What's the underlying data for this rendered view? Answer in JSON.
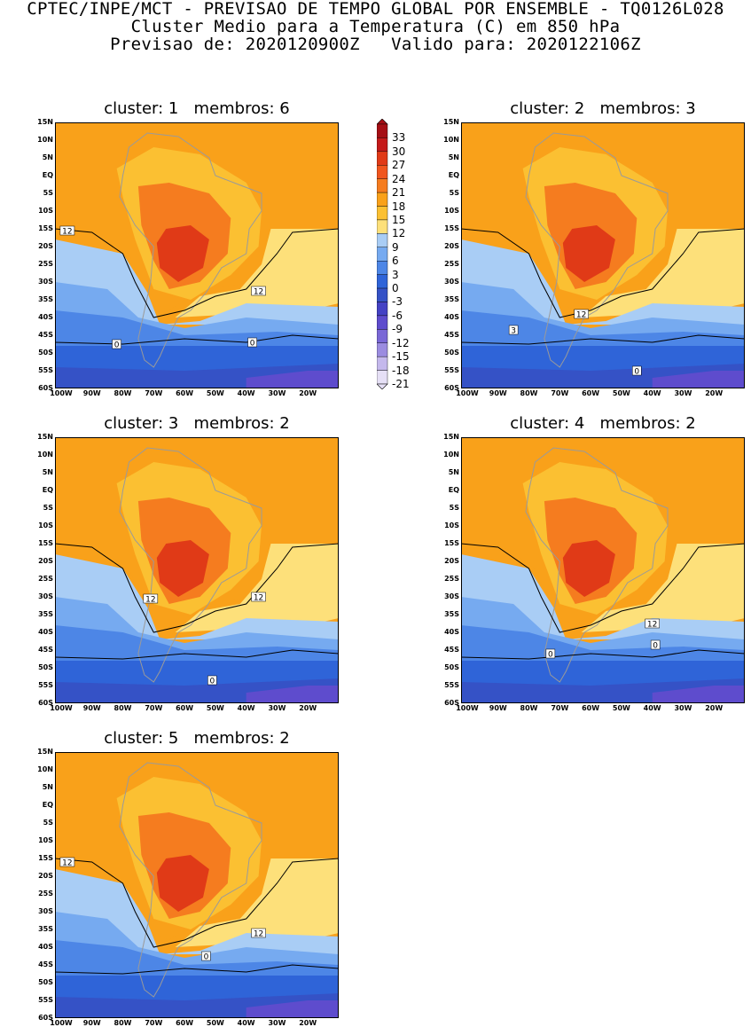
{
  "header": {
    "line1": "CPTEC/INPE/MCT - PREVISAO DE TEMPO GLOBAL POR ENSEMBLE - TQ0126L028",
    "line2": "Cluster Medio para a Temperatura (C) em 850 hPa",
    "line3": "Previsao de: 2020120900Z   Valido para: 2020122106Z"
  },
  "axes": {
    "lat_labels": [
      "15N",
      "10N",
      "5N",
      "EQ",
      "5S",
      "10S",
      "15S",
      "20S",
      "25S",
      "30S",
      "35S",
      "40S",
      "45S",
      "50S",
      "55S",
      "60S"
    ],
    "lon_labels": [
      "100W",
      "90W",
      "80W",
      "70W",
      "60W",
      "50W",
      "40W",
      "30W",
      "20W"
    ]
  },
  "colorbar": {
    "levels": [
      "33",
      "30",
      "27",
      "24",
      "21",
      "18",
      "15",
      "12",
      "9",
      "6",
      "3",
      "0",
      "-3",
      "-6",
      "-9",
      "-12",
      "-15",
      "-18",
      "-21"
    ],
    "colors": [
      "#a50f15",
      "#c41a1a",
      "#e03a17",
      "#f0561e",
      "#f57c1f",
      "#f9a11a",
      "#fbc032",
      "#fde07a",
      "#a9cdf5",
      "#76aaf0",
      "#4d86e6",
      "#2f64d8",
      "#3552c6",
      "#4442c4",
      "#5e4ccd",
      "#7a68d6",
      "#9b8ce0",
      "#c4b8ec",
      "#e6e0f6"
    ]
  },
  "panels": [
    {
      "title": "cluster: 1   membros: 6",
      "contour_labels": [
        {
          "text": "12",
          "lon": -98,
          "lat": -15.5
        },
        {
          "text": "12",
          "lon": -36,
          "lat": -32.5
        },
        {
          "text": "0",
          "lon": -82,
          "lat": -47.5
        },
        {
          "text": "0",
          "lon": -38,
          "lat": -47
        }
      ]
    },
    {
      "title": "cluster: 2   membros: 3",
      "contour_labels": [
        {
          "text": "3",
          "lon": -85,
          "lat": -43.5
        },
        {
          "text": "12",
          "lon": -63,
          "lat": -39
        },
        {
          "text": "0",
          "lon": -45,
          "lat": -55
        }
      ]
    },
    {
      "title": "cluster: 3   membros: 2",
      "contour_labels": [
        {
          "text": "12",
          "lon": -71,
          "lat": -30.5
        },
        {
          "text": "12",
          "lon": -36,
          "lat": -30
        },
        {
          "text": "0",
          "lon": -51,
          "lat": -53.5
        }
      ]
    },
    {
      "title": "cluster: 4   membros: 2",
      "contour_labels": [
        {
          "text": "12",
          "lon": -40,
          "lat": -37.5
        },
        {
          "text": "0",
          "lon": -73,
          "lat": -46
        },
        {
          "text": "0",
          "lon": -39,
          "lat": -43.5
        }
      ]
    },
    {
      "title": "cluster: 5   membros: 2",
      "contour_labels": [
        {
          "text": "12",
          "lon": -98,
          "lat": -16
        },
        {
          "text": "12",
          "lon": -36,
          "lat": -36
        },
        {
          "text": "0",
          "lon": -53,
          "lat": -42.5
        }
      ]
    }
  ]
}
